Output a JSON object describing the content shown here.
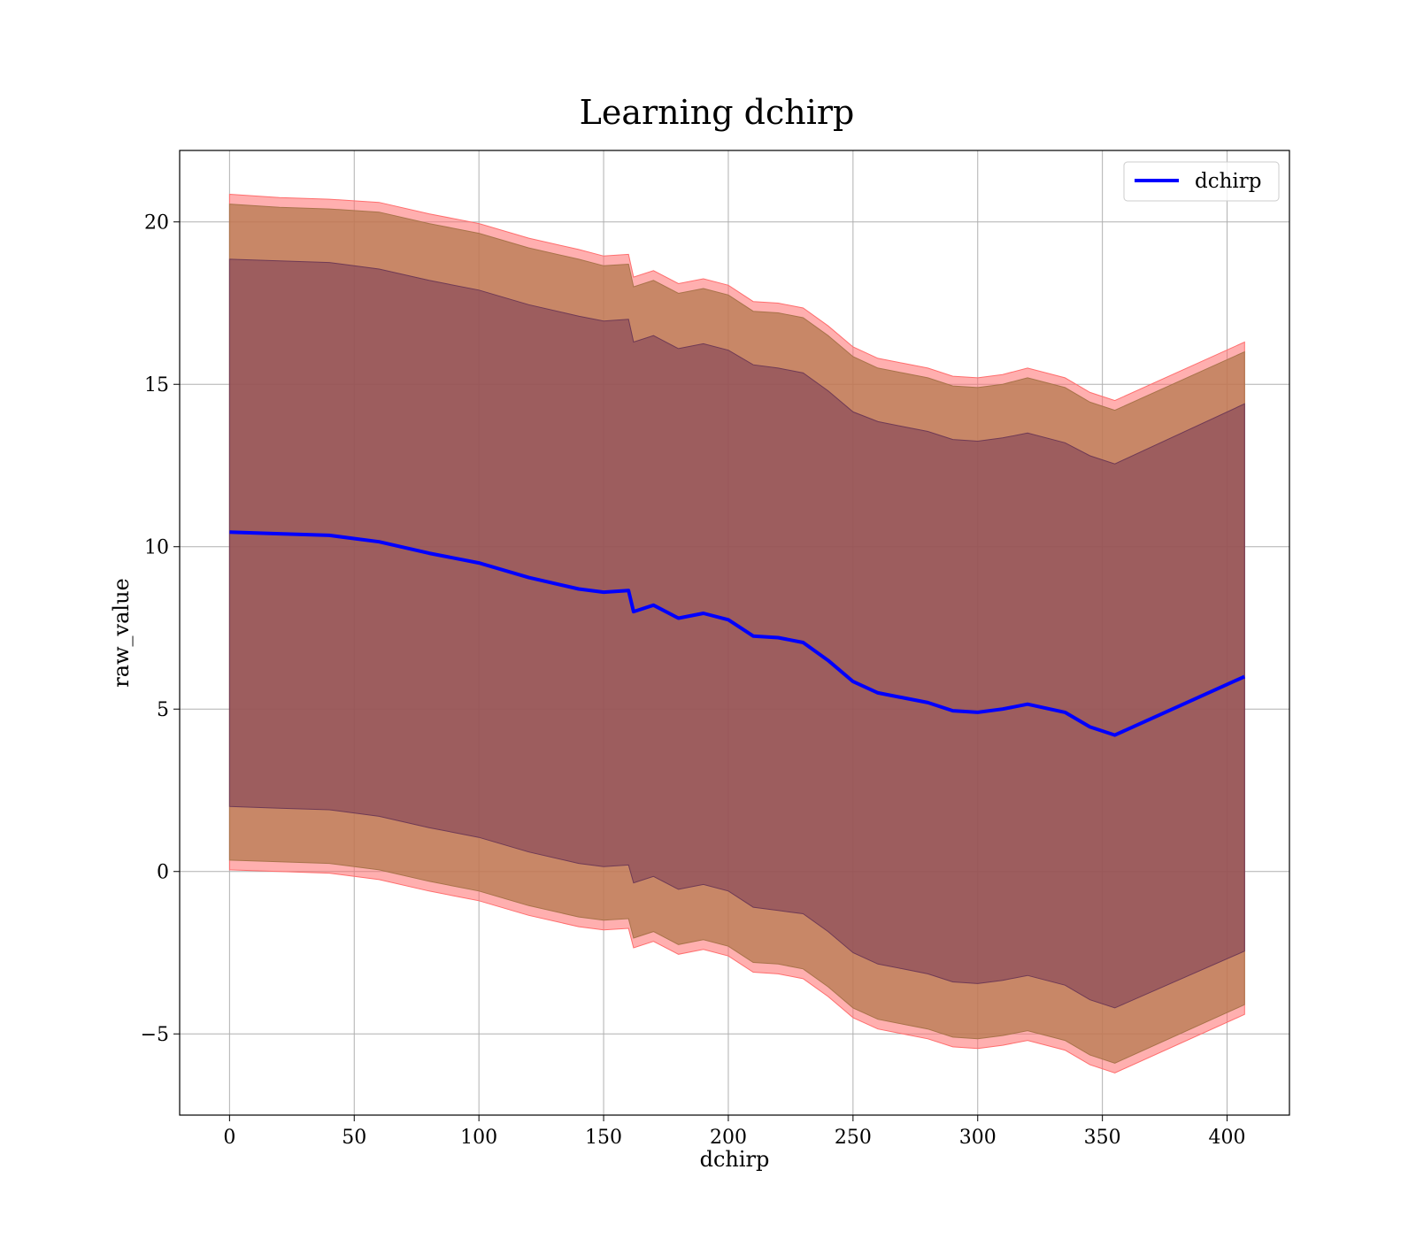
{
  "chart_data": {
    "type": "line",
    "title": "Learning dchirp",
    "xlabel": "dchirp",
    "ylabel": "raw_value",
    "xlim": [
      -20,
      425
    ],
    "ylim": [
      -7.5,
      22.2
    ],
    "xticks": [
      0,
      50,
      100,
      150,
      200,
      250,
      300,
      350,
      400
    ],
    "yticks": [
      -5,
      0,
      5,
      10,
      15,
      20
    ],
    "ytick_labels": [
      "−5",
      "0",
      "5",
      "10",
      "15",
      "20"
    ],
    "xtick_labels": [
      "0",
      "50",
      "100",
      "150",
      "200",
      "250",
      "300",
      "350",
      "400"
    ],
    "grid": true,
    "legend": {
      "position": "top-right",
      "entries": [
        "dchirp"
      ]
    },
    "colors": {
      "line": "#0000ff",
      "outer_band": "#ff6e6e",
      "middle_band": "#b5794f",
      "inner_band": "#7a3a58"
    },
    "x": [
      0,
      20,
      40,
      60,
      80,
      100,
      120,
      140,
      150,
      160,
      162,
      170,
      180,
      190,
      200,
      210,
      220,
      230,
      240,
      250,
      260,
      270,
      280,
      290,
      300,
      310,
      320,
      335,
      345,
      355,
      407
    ],
    "series": [
      {
        "name": "dchirp",
        "role": "mean",
        "values": [
          10.45,
          10.4,
          10.35,
          10.15,
          9.8,
          9.5,
          9.05,
          8.7,
          8.6,
          8.65,
          8.0,
          8.2,
          7.8,
          7.95,
          7.75,
          7.25,
          7.2,
          7.05,
          6.5,
          5.85,
          5.5,
          5.35,
          5.2,
          4.95,
          4.9,
          5.0,
          5.15,
          4.9,
          4.45,
          4.2,
          6.0
        ]
      },
      {
        "name": "outer_upper",
        "values": [
          20.85,
          20.75,
          20.7,
          20.6,
          20.25,
          19.95,
          19.5,
          19.15,
          18.95,
          19.0,
          18.3,
          18.5,
          18.1,
          18.25,
          18.05,
          17.55,
          17.5,
          17.35,
          16.8,
          16.15,
          15.8,
          15.65,
          15.5,
          15.25,
          15.2,
          15.3,
          15.5,
          15.2,
          14.75,
          14.5,
          16.3
        ]
      },
      {
        "name": "middle_upper",
        "values": [
          20.55,
          20.45,
          20.4,
          20.3,
          19.95,
          19.65,
          19.2,
          18.85,
          18.65,
          18.7,
          18.0,
          18.2,
          17.8,
          17.95,
          17.75,
          17.25,
          17.2,
          17.05,
          16.5,
          15.85,
          15.5,
          15.35,
          15.2,
          14.95,
          14.9,
          15.0,
          15.2,
          14.9,
          14.45,
          14.2,
          16.0
        ]
      },
      {
        "name": "inner_upper",
        "values": [
          18.85,
          18.8,
          18.75,
          18.55,
          18.2,
          17.9,
          17.45,
          17.1,
          16.95,
          17.0,
          16.3,
          16.5,
          16.1,
          16.25,
          16.05,
          15.6,
          15.5,
          15.35,
          14.8,
          14.15,
          13.85,
          13.7,
          13.55,
          13.3,
          13.25,
          13.35,
          13.5,
          13.2,
          12.8,
          12.55,
          14.4
        ]
      },
      {
        "name": "inner_lower",
        "values": [
          2.0,
          1.95,
          1.9,
          1.7,
          1.35,
          1.05,
          0.6,
          0.25,
          0.15,
          0.2,
          -0.35,
          -0.15,
          -0.55,
          -0.4,
          -0.6,
          -1.1,
          -1.2,
          -1.3,
          -1.85,
          -2.5,
          -2.85,
          -3.0,
          -3.15,
          -3.4,
          -3.45,
          -3.35,
          -3.2,
          -3.5,
          -3.95,
          -4.2,
          -2.45
        ]
      },
      {
        "name": "middle_lower",
        "values": [
          0.35,
          0.3,
          0.25,
          0.05,
          -0.3,
          -0.6,
          -1.05,
          -1.4,
          -1.5,
          -1.45,
          -2.05,
          -1.85,
          -2.25,
          -2.1,
          -2.3,
          -2.8,
          -2.85,
          -3.0,
          -3.55,
          -4.2,
          -4.55,
          -4.7,
          -4.85,
          -5.1,
          -5.15,
          -5.05,
          -4.9,
          -5.2,
          -5.65,
          -5.9,
          -4.1
        ]
      },
      {
        "name": "outer_lower",
        "values": [
          0.05,
          0.0,
          -0.05,
          -0.25,
          -0.6,
          -0.9,
          -1.35,
          -1.7,
          -1.8,
          -1.75,
          -2.35,
          -2.15,
          -2.55,
          -2.4,
          -2.6,
          -3.1,
          -3.15,
          -3.3,
          -3.85,
          -4.5,
          -4.85,
          -5.0,
          -5.15,
          -5.4,
          -5.45,
          -5.35,
          -5.2,
          -5.5,
          -5.95,
          -6.2,
          -4.4
        ]
      }
    ]
  }
}
